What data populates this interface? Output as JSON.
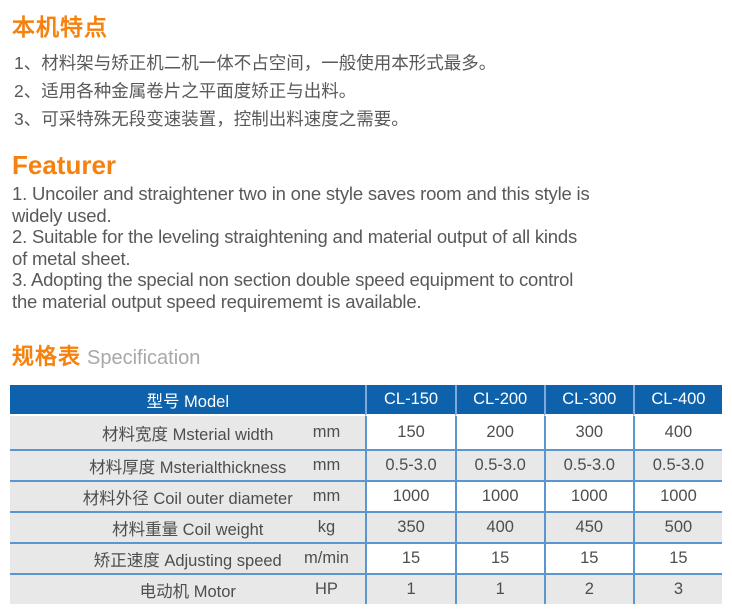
{
  "colors": {
    "accent_orange": "#F5820F",
    "body_text": "#595959",
    "spec_subtitle": "#A8A8A8",
    "table_header_bg": "#0E61AB",
    "table_header_text": "#FFFFFF",
    "table_border": "#5B96CC",
    "cell_gray": "#E8E8E8",
    "cell_text": "#4E4E4E"
  },
  "features_zh": {
    "title": "本机特点",
    "items": [
      "1、材料架与矫正机二机一体不占空间，一般使用本形式最多。",
      "2、适用各种金属卷片之平面度矫正与出料。",
      "3、可采特殊无段变速装置，控制出料速度之需要。"
    ]
  },
  "features_en": {
    "title": "Featurer",
    "lines": [
      "1.  Uncoiler and straightener two in one style saves room and this style is",
      "widely used.",
      "2.  Suitable for the leveling straightening and material output of all kinds",
      "of metal sheet.",
      "3.  Adopting the special non section double speed equipment to control",
      "the material output speed requirememt is available."
    ]
  },
  "spec_heading": {
    "zh": "规格表",
    "en": "Specification"
  },
  "table": {
    "header": {
      "model_label": "型号 Model",
      "columns": [
        "CL-150",
        "CL-200",
        "CL-300",
        "CL-400"
      ]
    },
    "rows": [
      {
        "label": "材料宽度 Msterial width",
        "unit": "mm",
        "values": [
          "150",
          "200",
          "300",
          "400"
        ]
      },
      {
        "label": "材料厚度 Msterialthickness",
        "unit": "mm",
        "values": [
          "0.5-3.0",
          "0.5-3.0",
          "0.5-3.0",
          "0.5-3.0"
        ]
      },
      {
        "label": "材料外径 Coil outer diameter",
        "unit": "mm",
        "values": [
          "1000",
          "1000",
          "1000",
          "1000"
        ]
      },
      {
        "label": "材料重量 Coil weight",
        "unit": "kg",
        "values": [
          "350",
          "400",
          "450",
          "500"
        ]
      },
      {
        "label": "矫正速度 Adjusting speed",
        "unit": "m/min",
        "values": [
          "15",
          "15",
          "15",
          "15"
        ]
      },
      {
        "label": "电动机 Motor",
        "unit": "HP",
        "values": [
          "1",
          "1",
          "2",
          "3"
        ]
      }
    ]
  }
}
